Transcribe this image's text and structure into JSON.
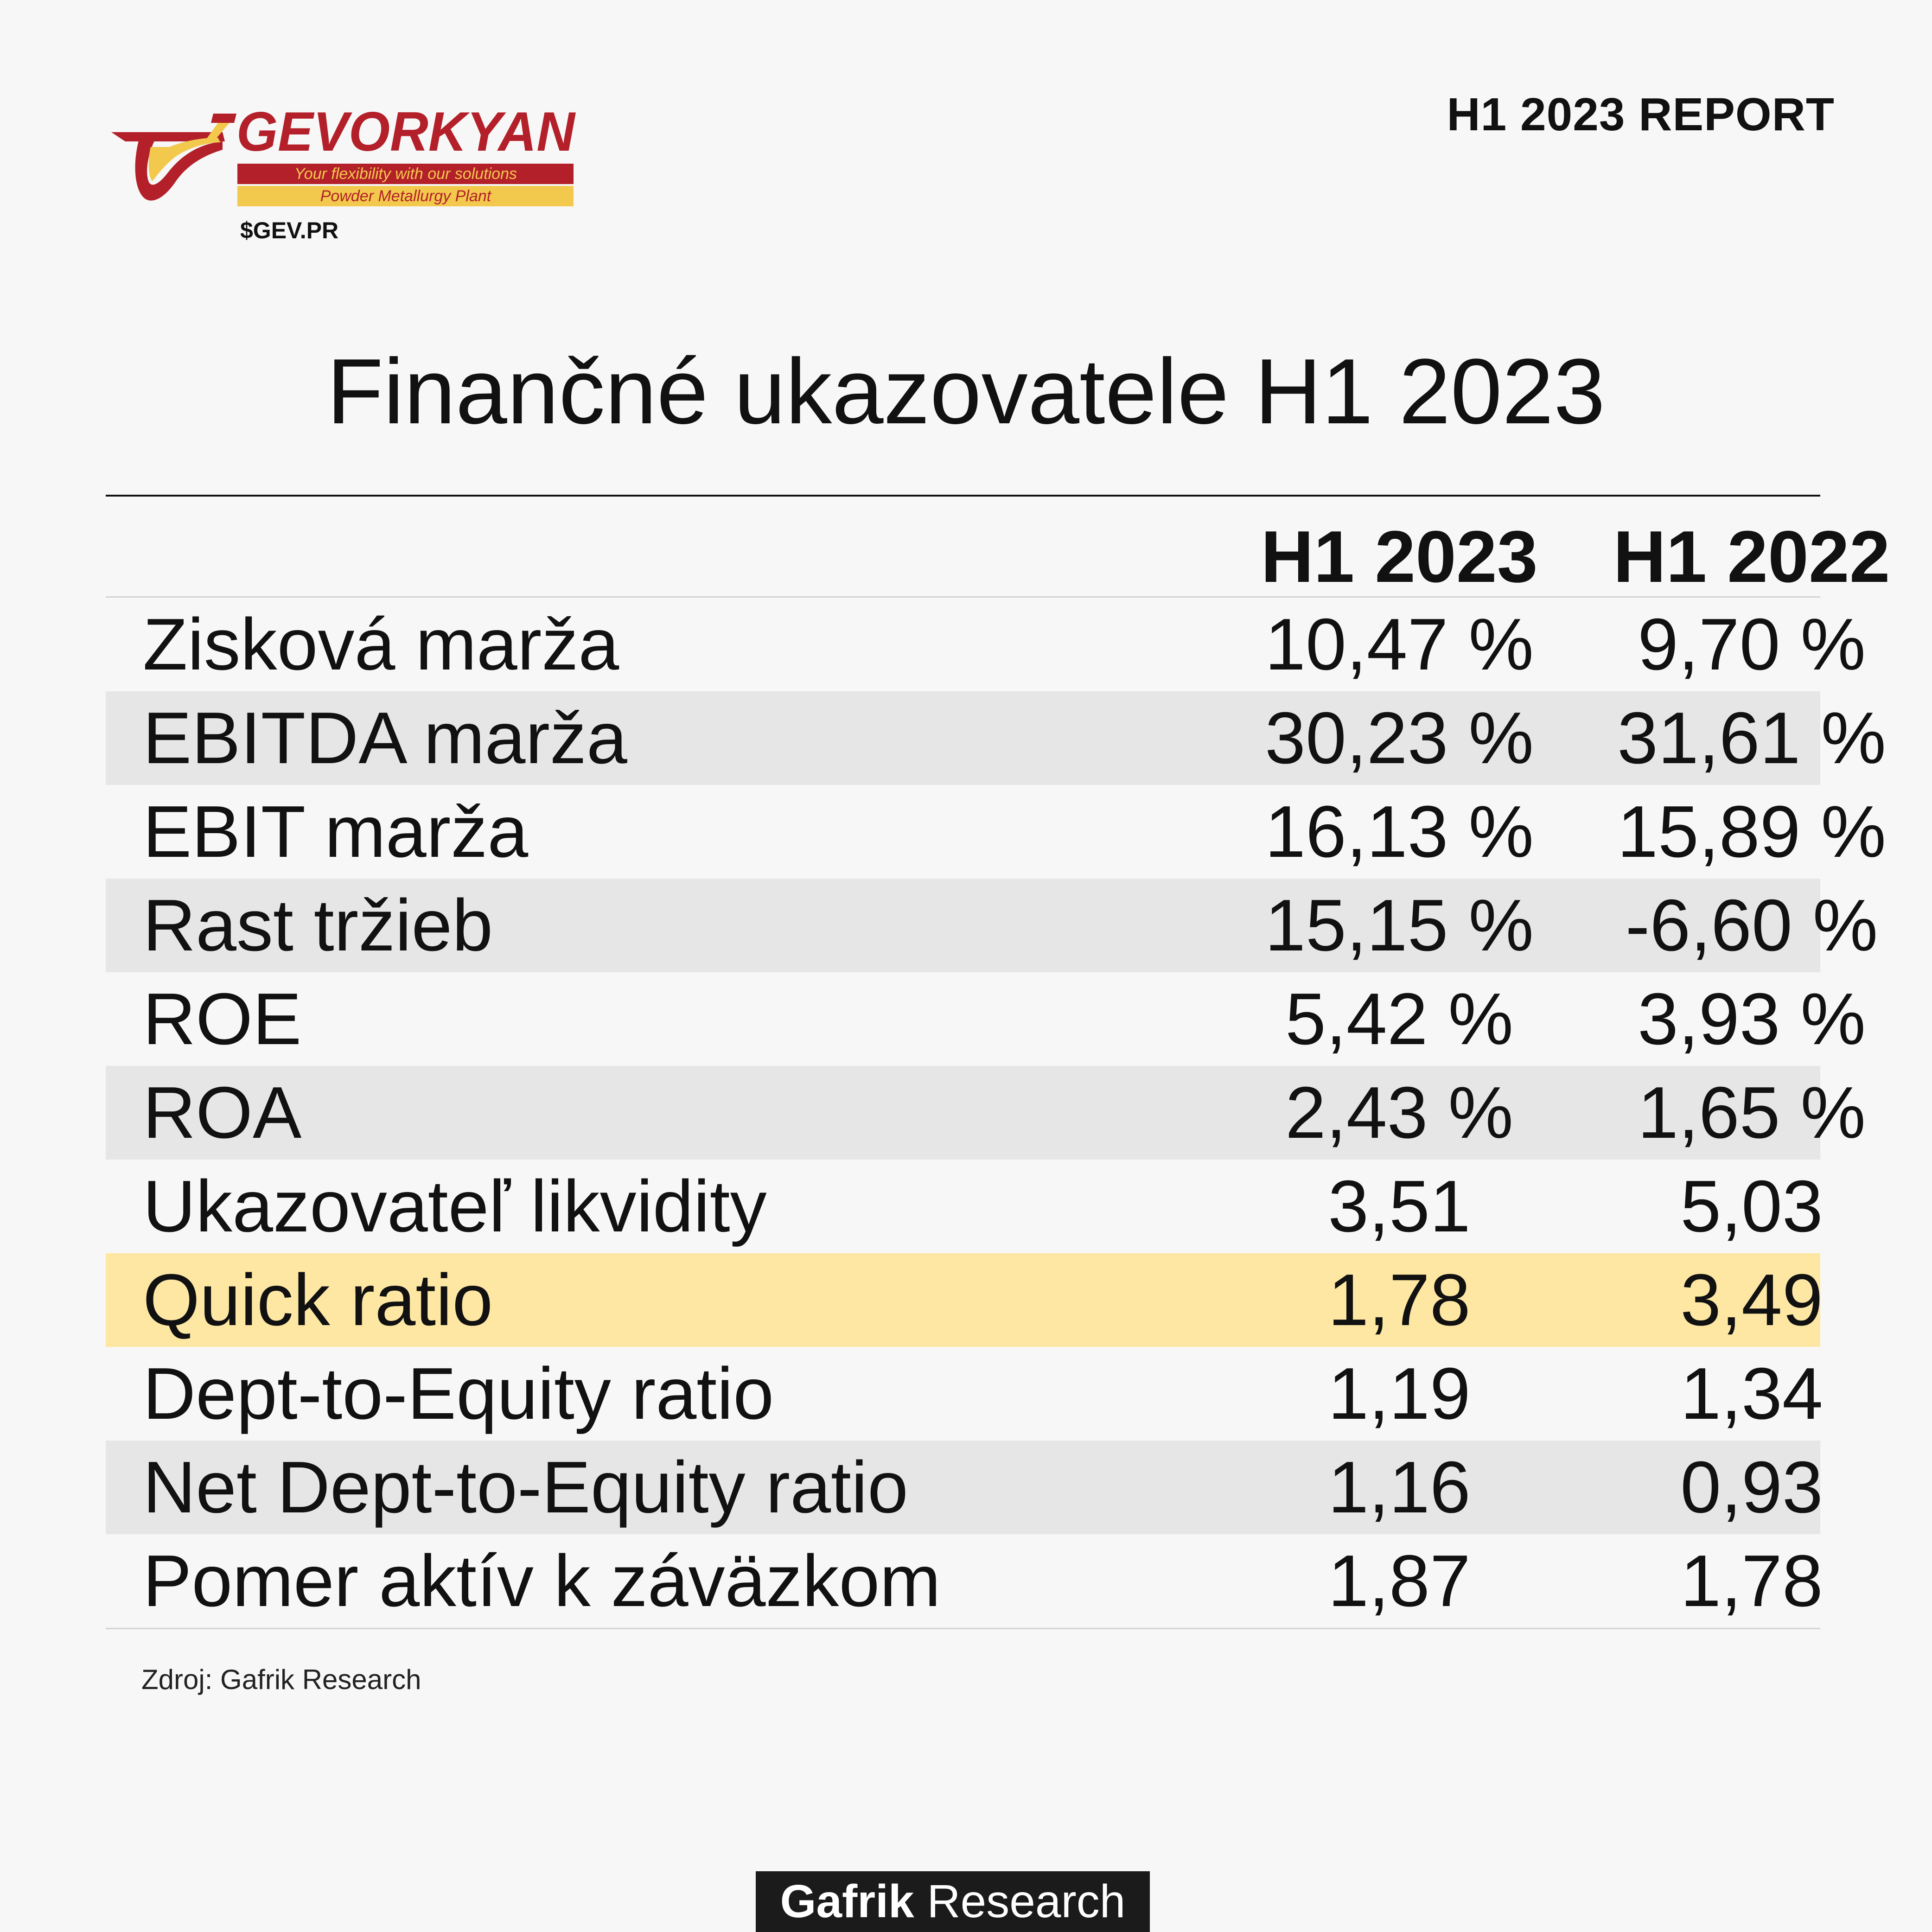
{
  "header": {
    "brand_name": "GEVORKYAN",
    "brand_tagline": "Your flexibility with our solutions",
    "brand_subtitle": "Powder Metallurgy Plant",
    "ticker": "$GEV.PR",
    "report_label": "H1 2023 REPORT"
  },
  "title": "Finančné ukazovatele H1 2023",
  "table": {
    "columns": [
      "H1 2023",
      "H1 2022"
    ],
    "rows": [
      {
        "label": "Zisková marža",
        "h1_2023": "10,47 %",
        "h1_2022": "9,70 %"
      },
      {
        "label": "EBITDA marža",
        "h1_2023": "30,23 %",
        "h1_2022": "31,61 %"
      },
      {
        "label": "EBIT marža",
        "h1_2023": "16,13 %",
        "h1_2022": "15,89 %"
      },
      {
        "label": "Rast tržieb",
        "h1_2023": "15,15 %",
        "h1_2022": "-6,60 %"
      },
      {
        "label": "ROE",
        "h1_2023": "5,42 %",
        "h1_2022": "3,93 %"
      },
      {
        "label": "ROA",
        "h1_2023": "2,43 %",
        "h1_2022": "1,65 %"
      },
      {
        "label": "Ukazovateľ likvidity",
        "h1_2023": "3,51",
        "h1_2022": "5,03"
      },
      {
        "label": "Quick ratio",
        "h1_2023": "1,78",
        "h1_2022": "3,49"
      },
      {
        "label": "Dept-to-Equity ratio",
        "h1_2023": "1,19",
        "h1_2022": "1,34"
      },
      {
        "label": "Net Dept-to-Equity ratio",
        "h1_2023": "1,16",
        "h1_2022": "0,93"
      },
      {
        "label": "Pomer aktív k záväzkom",
        "h1_2023": "1,87",
        "h1_2022": "1,78"
      }
    ]
  },
  "source": "Zdroj: Gafrik Research",
  "footer": {
    "brand_bold": "Gafrik",
    "brand_rest": " Research"
  },
  "colors": {
    "brand_red": "#b3202a",
    "brand_yellow": "#f2c94c",
    "row_grey": "#e6e6e6",
    "row_highlight": "#fde7a3"
  }
}
